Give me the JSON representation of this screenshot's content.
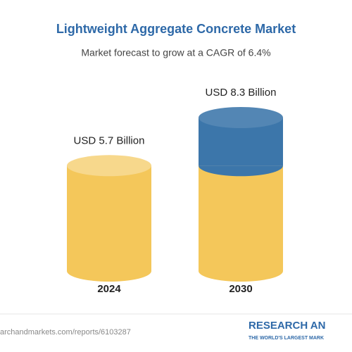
{
  "chart_data": {
    "type": "cylinder",
    "title": "Lightweight Aggregate Concrete Market",
    "subtitle": "Market forecast to grow at a CAGR of 6.4%",
    "categories": [
      "2024",
      "2030"
    ],
    "values": [
      5.7,
      8.3
    ],
    "value_labels": [
      "USD 5.7 Billion",
      "USD 8.3 Billion"
    ],
    "colors": {
      "base": "#f4c75a",
      "growth": "#3c76aa"
    },
    "source": "archandmarkets.com/reports/6103287",
    "logo": "RESEARCH AN",
    "tagline": "THE WORLD'S LARGEST MARK"
  }
}
